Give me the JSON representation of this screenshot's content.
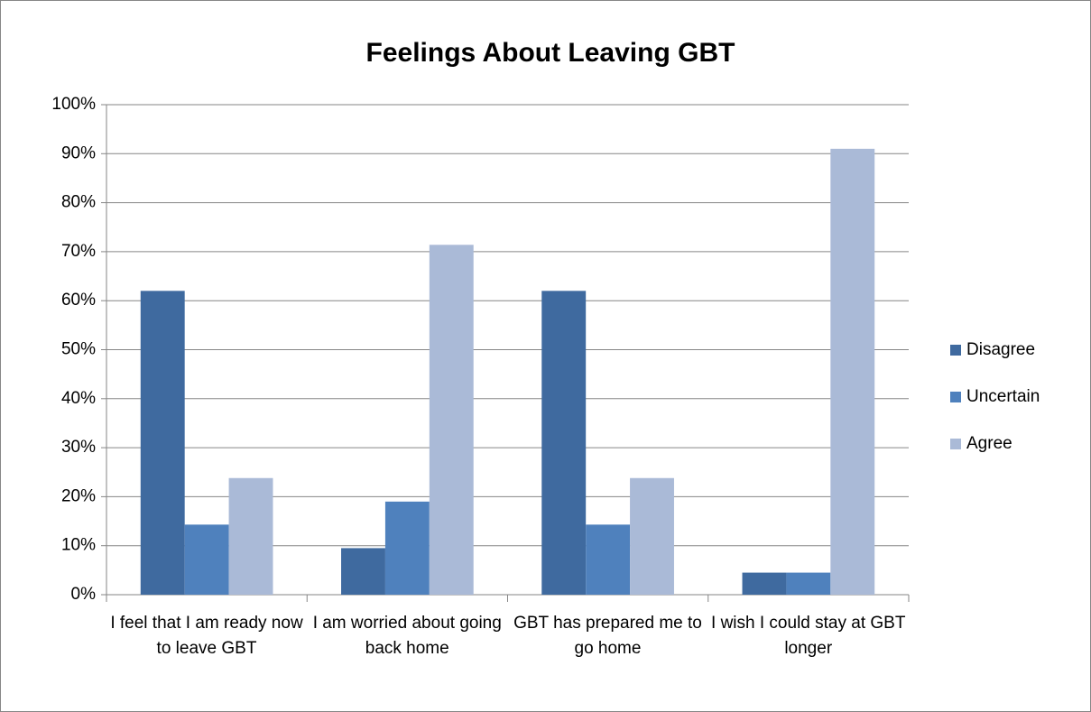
{
  "chart_data": {
    "type": "bar",
    "title": "Feelings About Leaving GBT",
    "categories": [
      "I feel that I am ready now to leave GBT",
      "I am worried about going back home",
      "GBT has prepared me to go home",
      "I wish I could stay at GBT longer"
    ],
    "series": [
      {
        "name": "Disagree",
        "color": "#3f6a9f",
        "values": [
          62,
          9.5,
          62,
          4.5
        ]
      },
      {
        "name": "Uncertain",
        "color": "#4f81bd",
        "values": [
          14.3,
          19,
          14.3,
          4.5
        ]
      },
      {
        "name": "Agree",
        "color": "#aabad7",
        "values": [
          23.8,
          71.4,
          23.8,
          91
        ]
      }
    ],
    "ylim": [
      0,
      100
    ],
    "yticks": [
      {
        "value": 0,
        "label": "0%"
      },
      {
        "value": 10,
        "label": "10%"
      },
      {
        "value": 20,
        "label": "20%"
      },
      {
        "value": 30,
        "label": "30%"
      },
      {
        "value": 40,
        "label": "40%"
      },
      {
        "value": 50,
        "label": "50%"
      },
      {
        "value": 60,
        "label": "60%"
      },
      {
        "value": 70,
        "label": "70%"
      },
      {
        "value": 80,
        "label": "80%"
      },
      {
        "value": 90,
        "label": "90%"
      },
      {
        "value": 100,
        "label": "100%"
      }
    ],
    "grid": true,
    "legend": "right"
  }
}
